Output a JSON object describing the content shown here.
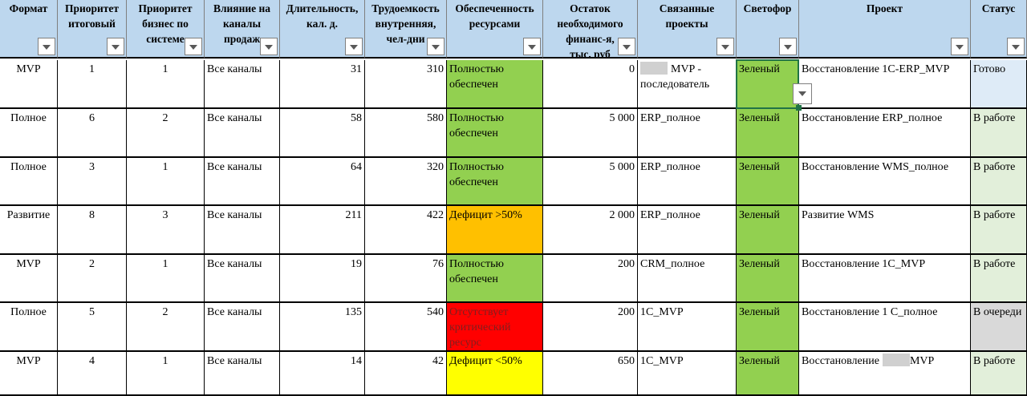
{
  "columns": [
    {
      "key": "format",
      "label": "Формат"
    },
    {
      "key": "prio_total",
      "label": "Приоритет\nитоговый"
    },
    {
      "key": "prio_business",
      "label": "Приоритет\nбизнес по\nсистеме"
    },
    {
      "key": "channels",
      "label": "Влияние на\nканалы\nпродаж"
    },
    {
      "key": "duration",
      "label": "Длительность,\nкал. д."
    },
    {
      "key": "effort",
      "label": "Трудоемкость\nвнутренняя,\nчел-дни"
    },
    {
      "key": "resources",
      "label": "Обеспеченность\nресурсами"
    },
    {
      "key": "finance",
      "label": "Остаток\nнеобходимого\nфинанс-я,\nтыс. руб"
    },
    {
      "key": "linked",
      "label": "Связанные\nпроекты"
    },
    {
      "key": "light",
      "label": "Светофор"
    },
    {
      "key": "project",
      "label": "Проект"
    },
    {
      "key": "status",
      "label": "Статус"
    }
  ],
  "rows": [
    {
      "format": "MVP",
      "prio_total": "1",
      "prio_business": "1",
      "channels": "Все каналы",
      "duration": "31",
      "effort": "310",
      "resources": "Полностью обеспечен",
      "finance": "0",
      "linked_pre": "",
      "linked": "MVP - последователь",
      "light": "Зеленый",
      "project_pre": "Восстановление 1C-ERP_MVP",
      "project_post": "",
      "status": "Готово"
    },
    {
      "format": "Полное",
      "prio_total": "6",
      "prio_business": "2",
      "channels": "Все каналы",
      "duration": "58",
      "effort": "580",
      "resources": "Полностью обеспечен",
      "finance": "5 000",
      "linked_pre": "",
      "linked": "ERP_полное",
      "light": "Зеленый",
      "project_pre": "Восстановление ERP_полное",
      "project_post": "",
      "status": "В работе"
    },
    {
      "format": "Полное",
      "prio_total": "3",
      "prio_business": "1",
      "channels": "Все каналы",
      "duration": "64",
      "effort": "320",
      "resources": "Полностью обеспечен",
      "finance": "5 000",
      "linked_pre": "",
      "linked": "ERP_полное",
      "light": "Зеленый",
      "project_pre": "Восстановление WMS_полное",
      "project_post": "",
      "status": "В работе"
    },
    {
      "format": "Развитие",
      "prio_total": "8",
      "prio_business": "3",
      "channels": "Все каналы",
      "duration": "211",
      "effort": "422",
      "resources": "Дефицит >50%",
      "finance": "2 000",
      "linked_pre": "",
      "linked": "ERP_полное",
      "light": "Зеленый",
      "project_pre": "Развитие WMS",
      "project_post": "",
      "status": "В работе"
    },
    {
      "format": "MVP",
      "prio_total": "2",
      "prio_business": "1",
      "channels": "Все каналы",
      "duration": "19",
      "effort": "76",
      "resources": "Полностью обеспечен",
      "finance": "200",
      "linked_pre": "",
      "linked": "CRM_полное",
      "light": "Зеленый",
      "project_pre": "Восстановление 1C_MVP",
      "project_post": "",
      "status": "В работе"
    },
    {
      "format": "Полное",
      "prio_total": "5",
      "prio_business": "2",
      "channels": "Все каналы",
      "duration": "135",
      "effort": "540",
      "resources": "Отсутствует критический ресурс",
      "finance": "200",
      "linked_pre": "",
      "linked": "1C_MVP",
      "light": "Зеленый",
      "project_pre": "Восстановление 1 С_полное",
      "project_post": "",
      "status": "В очереди"
    },
    {
      "format": "MVP",
      "prio_total": "4",
      "prio_business": "1",
      "channels": "Все каналы",
      "duration": "14",
      "effort": "42",
      "resources": "Дефицит <50%",
      "finance": "650",
      "linked_pre": "",
      "linked": "1C_MVP",
      "light": "Зеленый",
      "project_pre": "Восстановление",
      "project_post": "MVP",
      "status": "В работе"
    }
  ],
  "colors": {
    "header": "#bdd7ee",
    "green": "#92d050",
    "orange": "#ffc000",
    "red": "#ff0000",
    "yellow": "#ffff00",
    "status_done": "#deebf7",
    "status_work": "#e2efda",
    "status_queue": "#d9d9d9",
    "selection": "#217346"
  },
  "icons": {
    "filter": "chevron-down-icon"
  }
}
